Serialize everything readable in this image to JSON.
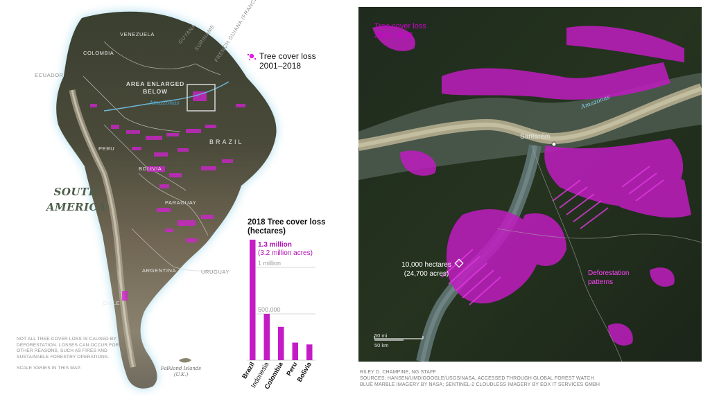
{
  "left_map": {
    "continent_label": [
      "SOUTH",
      "AMERICA"
    ],
    "countries": {
      "venezuela": "VENEZUELA",
      "colombia": "COLOMBIA",
      "ecuador": "ECUADOR",
      "peru": "PERU",
      "brazil": "BRAZIL",
      "bolivia": "BOLIVIA",
      "paraguay": "PARAGUAY",
      "argentina": "ARGENTINA",
      "chile": "CHILE",
      "uruguay": "URUGUAY",
      "guyana": "GUYANA",
      "suriname": "SURINAME",
      "french_guiana": "FRENCH GUIANA (FRANCE)"
    },
    "enlarged_area_label": [
      "AREA ENLARGED",
      "BELOW"
    ],
    "river_label": "Amazonas",
    "islands_label": [
      "Falkland Islands",
      "(U.K.)"
    ],
    "legend": {
      "title": "Tree cover loss",
      "years": "2001–2018",
      "color": "#e21be2"
    },
    "footnote": "NOT ALL TREE COVER LOSS IS CAUSED BY DEFORESTATION. LOSSES CAN OCCUR FOR OTHER REASONS, SUCH AS FIRES AND SUSTAINABLE FORESTRY OPERATIONS.",
    "scale_note": "SCALE VARIES IN THIS MAP."
  },
  "chart_data": {
    "type": "bar",
    "title": [
      "2018 Tree cover loss",
      "(hectares)"
    ],
    "categories": [
      "Brazil",
      "Indonesia",
      "Colombia",
      "Peru",
      "Bolivia"
    ],
    "values": [
      1300000,
      500000,
      360000,
      190000,
      170000
    ],
    "ylim": [
      0,
      1300000
    ],
    "gridlines": [
      {
        "value": 1000000,
        "label": "1 million"
      },
      {
        "value": 500000,
        "label": "500,000"
      }
    ],
    "top_label": {
      "line1": "1.3 million",
      "line2": "(3.2 million acres)"
    },
    "bold_categories": [
      "Brazil",
      "Colombia",
      "Peru",
      "Bolivia"
    ],
    "bar_color": "#c41cc4"
  },
  "right_map": {
    "legend": {
      "title": "Tree cover loss",
      "years": "2001–2018"
    },
    "city_label": "Santarém",
    "river_label": "Amazonas",
    "area_label": [
      "10,000 hectares",
      "(24,700 acres)"
    ],
    "pattern_label": [
      "Deforestation",
      "patterns"
    ],
    "scale": {
      "miles": "50 mi",
      "km": "50 km"
    }
  },
  "credits": [
    "RILEY D. CHAMPINE, NG STAFF",
    "SOURCES: HANSEN/UMD/GOOGLE/USGS/NASA, ACCESSED THROUGH GLOBAL FOREST WATCH",
    "BLUE MARBLE IMAGERY BY NASA; SENTINEL-2 CLOUDLESS IMAGERY BY EOX IT SERVICES GMBH"
  ]
}
